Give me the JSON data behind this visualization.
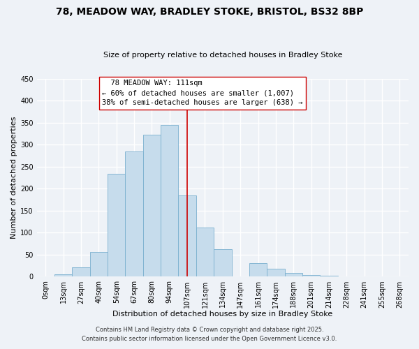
{
  "title": "78, MEADOW WAY, BRADLEY STOKE, BRISTOL, BS32 8BP",
  "subtitle": "Size of property relative to detached houses in Bradley Stoke",
  "xlabel": "Distribution of detached houses by size in Bradley Stoke",
  "ylabel": "Number of detached properties",
  "bar_labels": [
    "0sqm",
    "13sqm",
    "27sqm",
    "40sqm",
    "54sqm",
    "67sqm",
    "80sqm",
    "94sqm",
    "107sqm",
    "121sqm",
    "134sqm",
    "147sqm",
    "161sqm",
    "174sqm",
    "188sqm",
    "201sqm",
    "214sqm",
    "228sqm",
    "241sqm",
    "255sqm",
    "268sqm"
  ],
  "bar_values": [
    0,
    6,
    21,
    56,
    233,
    284,
    323,
    345,
    184,
    111,
    63,
    0,
    31,
    18,
    9,
    4,
    2,
    0,
    0,
    0,
    0
  ],
  "bar_color": "#c6dcec",
  "bar_edge_color": "#7ab0cf",
  "vline_x": 8,
  "vline_color": "#cc0000",
  "annotation_title": "78 MEADOW WAY: 111sqm",
  "annotation_line1": "← 60% of detached houses are smaller (1,007)",
  "annotation_line2": "38% of semi-detached houses are larger (638) →",
  "ylim": [
    0,
    450
  ],
  "yticks": [
    0,
    50,
    100,
    150,
    200,
    250,
    300,
    350,
    400,
    450
  ],
  "footer1": "Contains HM Land Registry data © Crown copyright and database right 2025.",
  "footer2": "Contains public sector information licensed under the Open Government Licence v3.0.",
  "bg_color": "#eef2f7",
  "grid_color": "#ffffff",
  "title_fontsize": 10,
  "subtitle_fontsize": 8,
  "axis_fontsize": 8,
  "tick_fontsize": 7,
  "annotation_fontsize": 7.5,
  "footer_fontsize": 6
}
